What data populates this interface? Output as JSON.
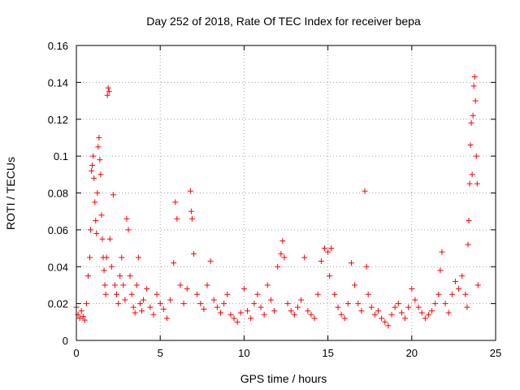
{
  "chart_data": {
    "type": "scatter",
    "title": "Day 252 of 2018, Rate Of TEC Index for receiver bepa",
    "xlabel": "GPS time / hours",
    "ylabel": "ROTI / TECUs",
    "xlim": [
      0,
      25
    ],
    "ylim": [
      0,
      0.16
    ],
    "xticks": [
      0,
      5,
      10,
      15,
      20,
      25
    ],
    "xtick_labels": [
      "0",
      "5",
      "10",
      "15",
      "20",
      "25"
    ],
    "yticks": [
      0,
      0.02,
      0.04,
      0.06,
      0.08,
      0.1,
      0.12,
      0.14,
      0.16
    ],
    "ytick_labels": [
      "0",
      "0.02",
      "0.04",
      "0.06",
      "0.08",
      "0.1",
      "0.12",
      "0.14",
      "0.16"
    ],
    "grid": true,
    "marker": "+",
    "color": "#ff0000",
    "series": [
      {
        "name": "ROTI",
        "points": [
          [
            0.0,
            0.018
          ],
          [
            0.1,
            0.014
          ],
          [
            0.2,
            0.012
          ],
          [
            0.3,
            0.016
          ],
          [
            0.4,
            0.013
          ],
          [
            0.5,
            0.011
          ],
          [
            0.6,
            0.02
          ],
          [
            0.7,
            0.035
          ],
          [
            0.8,
            0.045
          ],
          [
            0.85,
            0.06
          ],
          [
            0.9,
            0.092
          ],
          [
            0.95,
            0.095
          ],
          [
            1.0,
            0.1
          ],
          [
            1.05,
            0.088
          ],
          [
            1.1,
            0.075
          ],
          [
            1.15,
            0.065
          ],
          [
            1.2,
            0.058
          ],
          [
            1.25,
            0.08
          ],
          [
            1.3,
            0.105
          ],
          [
            1.35,
            0.11
          ],
          [
            1.4,
            0.098
          ],
          [
            1.45,
            0.09
          ],
          [
            1.5,
            0.068
          ],
          [
            1.55,
            0.055
          ],
          [
            1.6,
            0.045
          ],
          [
            1.65,
            0.038
          ],
          [
            1.7,
            0.03
          ],
          [
            1.75,
            0.025
          ],
          [
            1.8,
            0.045
          ],
          [
            1.85,
            0.133
          ],
          [
            1.9,
            0.137
          ],
          [
            1.95,
            0.135
          ],
          [
            2.0,
            0.055
          ],
          [
            2.1,
            0.04
          ],
          [
            2.2,
            0.079
          ],
          [
            2.3,
            0.03
          ],
          [
            2.4,
            0.025
          ],
          [
            2.5,
            0.02
          ],
          [
            2.6,
            0.035
          ],
          [
            2.7,
            0.045
          ],
          [
            2.8,
            0.03
          ],
          [
            2.9,
            0.022
          ],
          [
            3.0,
            0.066
          ],
          [
            3.1,
            0.06
          ],
          [
            3.2,
            0.035
          ],
          [
            3.3,
            0.025
          ],
          [
            3.4,
            0.018
          ],
          [
            3.5,
            0.015
          ],
          [
            3.6,
            0.03
          ],
          [
            3.7,
            0.045
          ],
          [
            3.8,
            0.02
          ],
          [
            3.9,
            0.016
          ],
          [
            4.0,
            0.022
          ],
          [
            4.2,
            0.028
          ],
          [
            4.4,
            0.018
          ],
          [
            4.6,
            0.014
          ],
          [
            4.8,
            0.025
          ],
          [
            5.0,
            0.02
          ],
          [
            5.2,
            0.017
          ],
          [
            5.4,
            0.012
          ],
          [
            5.6,
            0.022
          ],
          [
            5.8,
            0.042
          ],
          [
            5.9,
            0.075
          ],
          [
            6.0,
            0.066
          ],
          [
            6.2,
            0.03
          ],
          [
            6.4,
            0.02
          ],
          [
            6.6,
            0.028
          ],
          [
            6.8,
            0.081
          ],
          [
            6.85,
            0.07
          ],
          [
            6.9,
            0.066
          ],
          [
            7.0,
            0.047
          ],
          [
            7.2,
            0.025
          ],
          [
            7.4,
            0.02
          ],
          [
            7.6,
            0.017
          ],
          [
            7.8,
            0.03
          ],
          [
            8.0,
            0.043
          ],
          [
            8.2,
            0.022
          ],
          [
            8.4,
            0.018
          ],
          [
            8.6,
            0.015
          ],
          [
            8.8,
            0.02
          ],
          [
            9.0,
            0.025
          ],
          [
            9.2,
            0.014
          ],
          [
            9.4,
            0.012
          ],
          [
            9.6,
            0.01
          ],
          [
            9.8,
            0.015
          ],
          [
            10.0,
            0.028
          ],
          [
            10.2,
            0.016
          ],
          [
            10.4,
            0.012
          ],
          [
            10.6,
            0.02
          ],
          [
            10.8,
            0.025
          ],
          [
            11.0,
            0.018
          ],
          [
            11.2,
            0.014
          ],
          [
            11.4,
            0.03
          ],
          [
            11.6,
            0.022
          ],
          [
            11.8,
            0.016
          ],
          [
            12.0,
            0.04
          ],
          [
            12.2,
            0.047
          ],
          [
            12.3,
            0.054
          ],
          [
            12.4,
            0.045
          ],
          [
            12.6,
            0.02
          ],
          [
            12.8,
            0.016
          ],
          [
            13.0,
            0.014
          ],
          [
            13.2,
            0.018
          ],
          [
            13.4,
            0.022
          ],
          [
            13.6,
            0.045
          ],
          [
            13.8,
            0.016
          ],
          [
            14.0,
            0.014
          ],
          [
            14.2,
            0.012
          ],
          [
            14.4,
            0.025
          ],
          [
            14.6,
            0.043
          ],
          [
            14.8,
            0.05
          ],
          [
            15.0,
            0.048
          ],
          [
            15.1,
            0.035
          ],
          [
            15.2,
            0.05
          ],
          [
            15.4,
            0.025
          ],
          [
            15.6,
            0.018
          ],
          [
            15.8,
            0.014
          ],
          [
            16.0,
            0.012
          ],
          [
            16.2,
            0.02
          ],
          [
            16.4,
            0.042
          ],
          [
            16.6,
            0.03
          ],
          [
            16.8,
            0.02
          ],
          [
            17.0,
            0.016
          ],
          [
            17.2,
            0.081
          ],
          [
            17.3,
            0.04
          ],
          [
            17.4,
            0.025
          ],
          [
            17.6,
            0.018
          ],
          [
            17.8,
            0.014
          ],
          [
            18.0,
            0.016
          ],
          [
            18.2,
            0.012
          ],
          [
            18.4,
            0.01
          ],
          [
            18.6,
            0.008
          ],
          [
            18.8,
            0.014
          ],
          [
            19.0,
            0.018
          ],
          [
            19.2,
            0.02
          ],
          [
            19.4,
            0.015
          ],
          [
            19.6,
            0.012
          ],
          [
            19.8,
            0.018
          ],
          [
            20.0,
            0.028
          ],
          [
            20.2,
            0.022
          ],
          [
            20.4,
            0.018
          ],
          [
            20.6,
            0.015
          ],
          [
            20.8,
            0.012
          ],
          [
            21.0,
            0.014
          ],
          [
            21.2,
            0.016
          ],
          [
            21.4,
            0.02
          ],
          [
            21.6,
            0.025
          ],
          [
            21.7,
            0.038
          ],
          [
            21.8,
            0.048
          ],
          [
            22.0,
            0.02
          ],
          [
            22.2,
            0.015
          ],
          [
            22.4,
            0.025
          ],
          [
            22.6,
            0.032
          ],
          [
            22.8,
            0.028
          ],
          [
            23.0,
            0.035
          ],
          [
            23.2,
            0.025
          ],
          [
            23.3,
            0.018
          ],
          [
            23.35,
            0.052
          ],
          [
            23.4,
            0.065
          ],
          [
            23.45,
            0.085
          ],
          [
            23.5,
            0.106
          ],
          [
            23.55,
            0.118
          ],
          [
            23.6,
            0.09
          ],
          [
            23.65,
            0.122
          ],
          [
            23.7,
            0.138
          ],
          [
            23.75,
            0.143
          ],
          [
            23.8,
            0.13
          ],
          [
            23.85,
            0.1
          ],
          [
            23.9,
            0.085
          ],
          [
            23.95,
            0.03
          ]
        ]
      }
    ]
  }
}
